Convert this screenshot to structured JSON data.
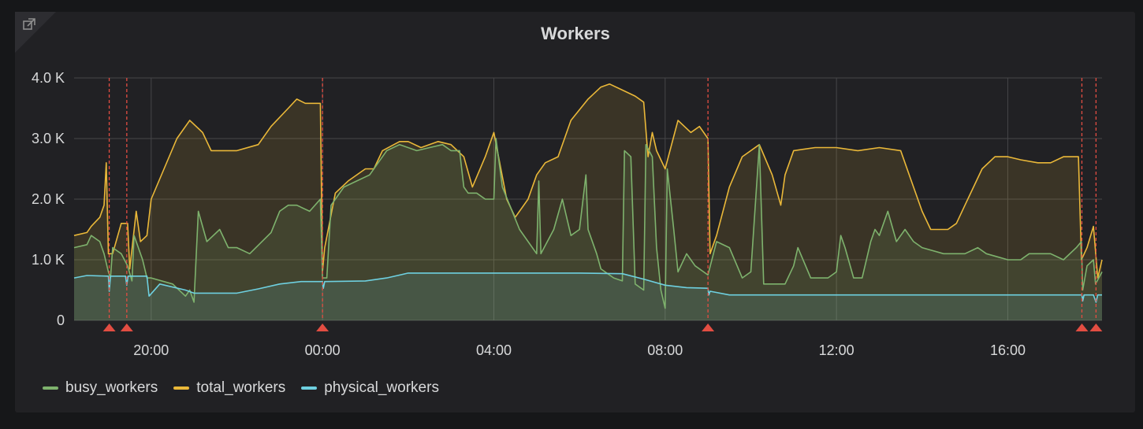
{
  "panel": {
    "title": "Workers"
  },
  "colors": {
    "busy": "#7eb26d",
    "total": "#eab839",
    "physical": "#6ed0e0",
    "annotation": "#e24d42"
  },
  "chart_data": {
    "type": "line",
    "title": "Workers",
    "ylim": [
      0,
      4000
    ],
    "yticks": [
      {
        "value": 0,
        "label": "0"
      },
      {
        "value": 1000,
        "label": "1.0 K"
      },
      {
        "value": 2000,
        "label": "2.0 K"
      },
      {
        "value": 3000,
        "label": "3.0 K"
      },
      {
        "value": 4000,
        "label": "4.0 K"
      }
    ],
    "xlim": [
      18.2,
      42.2
    ],
    "xticks": [
      {
        "value": 20,
        "label": "20:00"
      },
      {
        "value": 24,
        "label": "00:00"
      },
      {
        "value": 28,
        "label": "04:00"
      },
      {
        "value": 32,
        "label": "08:00"
      },
      {
        "value": 36,
        "label": "12:00"
      },
      {
        "value": 40,
        "label": "16:00"
      }
    ],
    "annotations_x": [
      19.02,
      19.43,
      24.0,
      33.0,
      41.73,
      42.06
    ],
    "series": [
      {
        "name": "busy_workers",
        "color": "#7eb26d",
        "points": [
          [
            18.2,
            1200
          ],
          [
            18.5,
            1250
          ],
          [
            18.6,
            1400
          ],
          [
            18.8,
            1300
          ],
          [
            18.9,
            1100
          ],
          [
            19.0,
            800
          ],
          [
            19.05,
            700
          ],
          [
            19.1,
            1200
          ],
          [
            19.3,
            1100
          ],
          [
            19.45,
            900
          ],
          [
            19.55,
            650
          ],
          [
            19.6,
            1400
          ],
          [
            19.8,
            1000
          ],
          [
            19.9,
            700
          ],
          [
            20.0,
            700
          ],
          [
            20.5,
            600
          ],
          [
            20.8,
            400
          ],
          [
            20.9,
            500
          ],
          [
            21.0,
            300
          ],
          [
            21.1,
            1800
          ],
          [
            21.3,
            1300
          ],
          [
            21.6,
            1500
          ],
          [
            21.8,
            1200
          ],
          [
            22.0,
            1200
          ],
          [
            22.3,
            1100
          ],
          [
            22.8,
            1450
          ],
          [
            23.0,
            1800
          ],
          [
            23.2,
            1900
          ],
          [
            23.4,
            1900
          ],
          [
            23.7,
            1800
          ],
          [
            23.95,
            2000
          ],
          [
            24.0,
            700
          ],
          [
            24.1,
            700
          ],
          [
            24.2,
            1900
          ],
          [
            24.5,
            2200
          ],
          [
            24.8,
            2300
          ],
          [
            25.1,
            2400
          ],
          [
            25.5,
            2800
          ],
          [
            25.8,
            2900
          ],
          [
            26.2,
            2800
          ],
          [
            26.5,
            2850
          ],
          [
            26.8,
            2900
          ],
          [
            27.0,
            2800
          ],
          [
            27.2,
            2800
          ],
          [
            27.3,
            2200
          ],
          [
            27.4,
            2100
          ],
          [
            27.6,
            2100
          ],
          [
            27.8,
            2000
          ],
          [
            28.0,
            2000
          ],
          [
            28.05,
            3000
          ],
          [
            28.2,
            2200
          ],
          [
            28.6,
            1500
          ],
          [
            29.0,
            1100
          ],
          [
            29.05,
            2300
          ],
          [
            29.1,
            1100
          ],
          [
            29.4,
            1500
          ],
          [
            29.6,
            2000
          ],
          [
            29.8,
            1400
          ],
          [
            30.0,
            1500
          ],
          [
            30.15,
            2400
          ],
          [
            30.2,
            1500
          ],
          [
            30.4,
            1100
          ],
          [
            30.5,
            850
          ],
          [
            30.8,
            700
          ],
          [
            31.0,
            650
          ],
          [
            31.05,
            2800
          ],
          [
            31.2,
            2700
          ],
          [
            31.3,
            600
          ],
          [
            31.5,
            500
          ],
          [
            31.55,
            2900
          ],
          [
            31.7,
            2700
          ],
          [
            31.8,
            1200
          ],
          [
            31.9,
            500
          ],
          [
            32.0,
            200
          ],
          [
            32.05,
            2500
          ],
          [
            32.2,
            1500
          ],
          [
            32.3,
            800
          ],
          [
            32.5,
            1100
          ],
          [
            32.7,
            900
          ],
          [
            33.0,
            750
          ],
          [
            33.2,
            1300
          ],
          [
            33.5,
            1200
          ],
          [
            33.8,
            700
          ],
          [
            34.0,
            800
          ],
          [
            34.2,
            2900
          ],
          [
            34.3,
            600
          ],
          [
            34.8,
            600
          ],
          [
            35.0,
            900
          ],
          [
            35.1,
            1200
          ],
          [
            35.4,
            700
          ],
          [
            35.6,
            700
          ],
          [
            35.8,
            700
          ],
          [
            36.0,
            800
          ],
          [
            36.1,
            1400
          ],
          [
            36.2,
            1200
          ],
          [
            36.4,
            700
          ],
          [
            36.6,
            700
          ],
          [
            36.8,
            1300
          ],
          [
            36.9,
            1500
          ],
          [
            37.0,
            1400
          ],
          [
            37.2,
            1800
          ],
          [
            37.4,
            1300
          ],
          [
            37.6,
            1500
          ],
          [
            37.8,
            1300
          ],
          [
            38.0,
            1200
          ],
          [
            38.5,
            1100
          ],
          [
            39.0,
            1100
          ],
          [
            39.3,
            1200
          ],
          [
            39.5,
            1100
          ],
          [
            40.0,
            1000
          ],
          [
            40.3,
            1000
          ],
          [
            40.5,
            1100
          ],
          [
            40.8,
            1100
          ],
          [
            41.0,
            1100
          ],
          [
            41.3,
            1000
          ],
          [
            41.6,
            1200
          ],
          [
            41.72,
            1300
          ],
          [
            41.75,
            500
          ],
          [
            41.85,
            900
          ],
          [
            42.0,
            1000
          ],
          [
            42.05,
            600
          ],
          [
            42.2,
            800
          ]
        ]
      },
      {
        "name": "total_workers",
        "color": "#eab839",
        "points": [
          [
            18.2,
            1400
          ],
          [
            18.5,
            1450
          ],
          [
            18.6,
            1550
          ],
          [
            18.8,
            1700
          ],
          [
            18.9,
            1900
          ],
          [
            18.95,
            2600
          ],
          [
            19.0,
            1100
          ],
          [
            19.1,
            1100
          ],
          [
            19.3,
            1600
          ],
          [
            19.45,
            1600
          ],
          [
            19.5,
            850
          ],
          [
            19.65,
            1800
          ],
          [
            19.75,
            1300
          ],
          [
            19.9,
            1400
          ],
          [
            20.0,
            2000
          ],
          [
            20.3,
            2500
          ],
          [
            20.6,
            3000
          ],
          [
            20.9,
            3300
          ],
          [
            21.2,
            3100
          ],
          [
            21.4,
            2800
          ],
          [
            21.7,
            2800
          ],
          [
            22.0,
            2800
          ],
          [
            22.5,
            2900
          ],
          [
            22.8,
            3200
          ],
          [
            23.2,
            3500
          ],
          [
            23.4,
            3650
          ],
          [
            23.6,
            3580
          ],
          [
            23.95,
            3580
          ],
          [
            24.0,
            800
          ],
          [
            24.05,
            1200
          ],
          [
            24.3,
            2100
          ],
          [
            24.6,
            2300
          ],
          [
            25.0,
            2500
          ],
          [
            25.2,
            2500
          ],
          [
            25.4,
            2800
          ],
          [
            25.8,
            2950
          ],
          [
            26.0,
            2950
          ],
          [
            26.3,
            2850
          ],
          [
            26.7,
            2950
          ],
          [
            27.0,
            2900
          ],
          [
            27.3,
            2700
          ],
          [
            27.5,
            2200
          ],
          [
            27.8,
            2700
          ],
          [
            28.0,
            3100
          ],
          [
            28.3,
            2000
          ],
          [
            28.5,
            1700
          ],
          [
            28.8,
            2000
          ],
          [
            29.0,
            2400
          ],
          [
            29.2,
            2600
          ],
          [
            29.5,
            2700
          ],
          [
            29.8,
            3300
          ],
          [
            30.2,
            3650
          ],
          [
            30.5,
            3850
          ],
          [
            30.7,
            3900
          ],
          [
            31.0,
            3800
          ],
          [
            31.3,
            3700
          ],
          [
            31.5,
            3600
          ],
          [
            31.6,
            2700
          ],
          [
            31.7,
            3100
          ],
          [
            31.8,
            2800
          ],
          [
            32.0,
            2500
          ],
          [
            32.3,
            3300
          ],
          [
            32.6,
            3100
          ],
          [
            32.8,
            3200
          ],
          [
            33.0,
            3000
          ],
          [
            33.05,
            1100
          ],
          [
            33.2,
            1400
          ],
          [
            33.5,
            2200
          ],
          [
            33.8,
            2700
          ],
          [
            34.2,
            2900
          ],
          [
            34.5,
            2400
          ],
          [
            34.7,
            1900
          ],
          [
            34.8,
            2400
          ],
          [
            35.0,
            2800
          ],
          [
            35.5,
            2850
          ],
          [
            36.0,
            2850
          ],
          [
            36.5,
            2800
          ],
          [
            37.0,
            2850
          ],
          [
            37.5,
            2800
          ],
          [
            37.8,
            2200
          ],
          [
            38.0,
            1800
          ],
          [
            38.2,
            1500
          ],
          [
            38.6,
            1500
          ],
          [
            38.8,
            1600
          ],
          [
            39.0,
            1900
          ],
          [
            39.4,
            2500
          ],
          [
            39.7,
            2700
          ],
          [
            40.0,
            2700
          ],
          [
            40.3,
            2650
          ],
          [
            40.7,
            2600
          ],
          [
            41.0,
            2600
          ],
          [
            41.3,
            2700
          ],
          [
            41.65,
            2700
          ],
          [
            41.72,
            1000
          ],
          [
            41.85,
            1200
          ],
          [
            42.0,
            1550
          ],
          [
            42.1,
            700
          ],
          [
            42.2,
            1000
          ]
        ]
      },
      {
        "name": "physical_workers",
        "color": "#6ed0e0",
        "points": [
          [
            18.2,
            700
          ],
          [
            18.5,
            740
          ],
          [
            19.0,
            730
          ],
          [
            19.02,
            480
          ],
          [
            19.05,
            730
          ],
          [
            19.4,
            730
          ],
          [
            19.43,
            580
          ],
          [
            19.46,
            730
          ],
          [
            19.9,
            730
          ],
          [
            19.95,
            400
          ],
          [
            20.2,
            600
          ],
          [
            20.8,
            500
          ],
          [
            21.0,
            450
          ],
          [
            22.0,
            450
          ],
          [
            22.5,
            520
          ],
          [
            23.0,
            600
          ],
          [
            23.5,
            640
          ],
          [
            24.0,
            640
          ],
          [
            24.02,
            530
          ],
          [
            24.05,
            640
          ],
          [
            25.0,
            650
          ],
          [
            25.5,
            700
          ],
          [
            26.0,
            780
          ],
          [
            27.0,
            780
          ],
          [
            28.0,
            780
          ],
          [
            29.0,
            780
          ],
          [
            30.0,
            780
          ],
          [
            31.0,
            770
          ],
          [
            31.5,
            680
          ],
          [
            32.0,
            580
          ],
          [
            32.5,
            540
          ],
          [
            33.0,
            530
          ],
          [
            33.02,
            420
          ],
          [
            33.05,
            480
          ],
          [
            33.5,
            420
          ],
          [
            36.0,
            420
          ],
          [
            38.0,
            420
          ],
          [
            40.0,
            420
          ],
          [
            41.5,
            420
          ],
          [
            41.73,
            420
          ],
          [
            41.75,
            320
          ],
          [
            41.78,
            420
          ],
          [
            42.0,
            420
          ],
          [
            42.06,
            300
          ],
          [
            42.1,
            420
          ],
          [
            42.2,
            420
          ]
        ]
      }
    ]
  }
}
